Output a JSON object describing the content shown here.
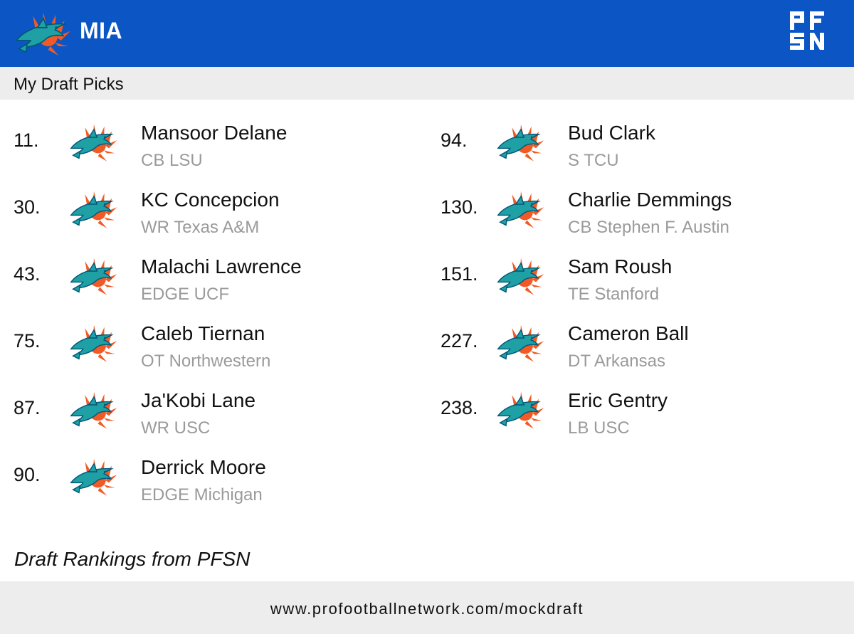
{
  "header": {
    "team_abbr": "MIA",
    "team_logo_icon": "dolphins-logo-icon",
    "brand_logo_icon": "pfsn-logo-icon",
    "background_color": "#0b56c4"
  },
  "subheader": {
    "title": "My Draft Picks"
  },
  "picks_left": [
    {
      "number": "11.",
      "name": "Mansoor Delane",
      "info": "CB LSU"
    },
    {
      "number": "30.",
      "name": "KC Concepcion",
      "info": "WR Texas A&M"
    },
    {
      "number": "43.",
      "name": "Malachi Lawrence",
      "info": "EDGE UCF"
    },
    {
      "number": "75.",
      "name": "Caleb Tiernan",
      "info": "OT Northwestern"
    },
    {
      "number": "87.",
      "name": "Ja'Kobi Lane",
      "info": "WR USC"
    },
    {
      "number": "90.",
      "name": "Derrick Moore",
      "info": "EDGE Michigan"
    }
  ],
  "picks_right": [
    {
      "number": "94.",
      "name": "Bud Clark",
      "info": "S TCU"
    },
    {
      "number": "130.",
      "name": "Charlie Demmings",
      "info": "CB Stephen F. Austin"
    },
    {
      "number": "151.",
      "name": "Sam Roush",
      "info": "TE Stanford"
    },
    {
      "number": "227.",
      "name": "Cameron Ball",
      "info": "DT Arkansas"
    },
    {
      "number": "238.",
      "name": "Eric Gentry",
      "info": "LB USC"
    }
  ],
  "source_note": "Draft Rankings from PFSN",
  "footer": {
    "url": "www.profootballnetwork.com/mockdraft"
  },
  "colors": {
    "aqua": "#1ea0a4",
    "orange": "#f15a24",
    "navy": "#005778"
  }
}
